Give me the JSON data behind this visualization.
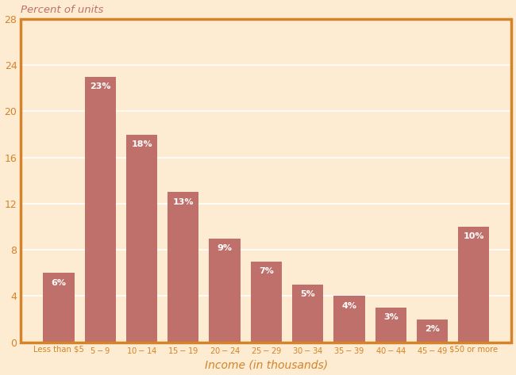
{
  "categories": [
    "Less than $5",
    "$5-$9",
    "$10-$14",
    "$15-$19",
    "$20-$24",
    "$25-$29",
    "$30-$34",
    "$35-$39",
    "$40-$44",
    "$45-$49",
    "$50 or more"
  ],
  "values": [
    6,
    23,
    18,
    13,
    9,
    7,
    5,
    4,
    3,
    2,
    10
  ],
  "labels": [
    "6%",
    "23%",
    "18%",
    "13%",
    "9%",
    "7%",
    "5%",
    "4%",
    "3%",
    "2%",
    "10%"
  ],
  "bar_color": "#c0706a",
  "background_color": "#fdecd2",
  "border_color": "#d4832a",
  "grid_color": "#ffffff",
  "title": "Percent of units",
  "title_color": "#c0706a",
  "xlabel": "Income (in thousands)",
  "xlabel_color": "#d4832a",
  "tick_color": "#d4832a",
  "label_text_color": "#ffffff",
  "ylim": [
    0,
    28
  ],
  "yticks": [
    0,
    4,
    8,
    12,
    16,
    20,
    24,
    28
  ]
}
